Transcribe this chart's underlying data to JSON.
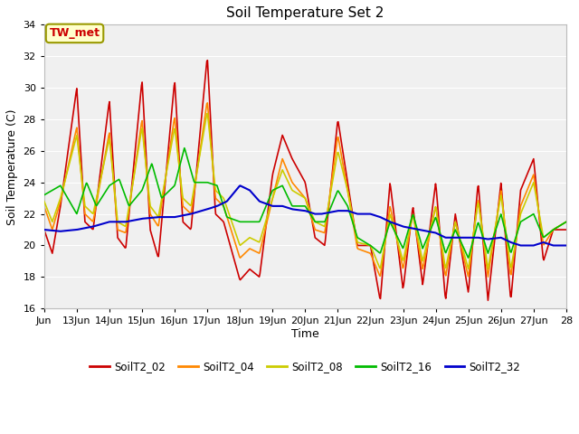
{
  "title": "Soil Temperature Set 2",
  "xlabel": "Time",
  "ylabel": "Soil Temperature (C)",
  "ylim": [
    16,
    34
  ],
  "yticks": [
    16,
    18,
    20,
    22,
    24,
    26,
    28,
    30,
    32,
    34
  ],
  "annotation": "TW_met",
  "annotation_color": "#cc0000",
  "annotation_bg": "#ffffcc",
  "annotation_border": "#999900",
  "colors": {
    "SoilT2_02": "#cc0000",
    "SoilT2_04": "#ff8800",
    "SoilT2_08": "#cccc00",
    "SoilT2_16": "#00bb00",
    "SoilT2_32": "#0000cc"
  },
  "fig_bg": "#ffffff",
  "plot_bg": "#f0f0f0",
  "grid_color": "#ffffff",
  "xtick_labels": [
    "Jun",
    "13Jun",
    "14Jun",
    "15Jun",
    "16Jun",
    "17Jun",
    "18Jun",
    "19Jun",
    "20Jun",
    "21Jun",
    "22Jun",
    "23Jun",
    "24Jun",
    "25Jun",
    "26Jun",
    "27Jun",
    "28"
  ],
  "xtick_positions": [
    12,
    13,
    14,
    15,
    16,
    17,
    18,
    19,
    20,
    21,
    22,
    23,
    24,
    25,
    26,
    27,
    28
  ]
}
